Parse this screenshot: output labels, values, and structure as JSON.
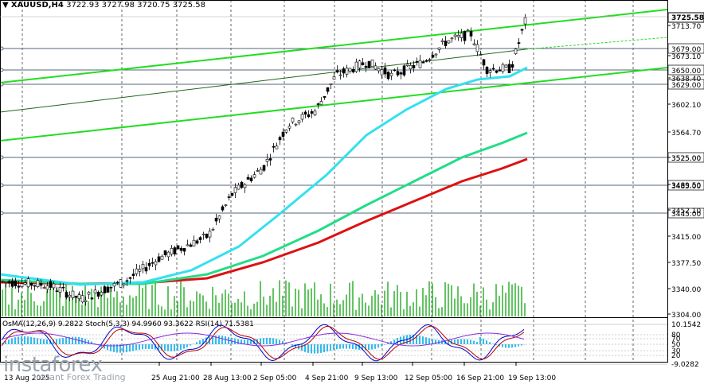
{
  "header": {
    "symbol": "XAUUSD,H4",
    "ohlc": "3722.93 3727.98 3720.75 3725.58"
  },
  "price_axis": {
    "ticks": [
      "3713.70",
      "3673.10",
      "3638.40",
      "3602.10",
      "3564.70",
      "3525.00",
      "3489.50",
      "3452.10",
      "3415.00",
      "3377.50",
      "3340.00",
      "3304.00"
    ],
    "current_price": "3725.58",
    "levels": [
      "3679.00",
      "3650.00",
      "3629.00",
      "3525.00",
      "3485.00",
      "3445.00"
    ]
  },
  "time_axis": {
    "labels": [
      "13 Aug 2025",
      "25 Aug 21:00",
      "28 Aug 13:00",
      "2 Sep 05:00",
      "4 Sep 21:00",
      "9 Sep 13:00",
      "12 Sep 05:00",
      "16 Sep 21:00",
      "19 Sep 13:00"
    ]
  },
  "indicators": {
    "label": "OsMA(12,26,9) 9.2822  Stoch(5,3,3) 94.9960 93.3622  RSI(14) 71.5381",
    "axis": [
      "10.1542",
      "80",
      "70",
      "50",
      "30",
      "20",
      "-9.0282"
    ]
  },
  "branding": {
    "name": "instaforex",
    "tagline": "Instant Forex Trading"
  },
  "colors": {
    "channel": "#22dd22",
    "ema_fast": "#33e0f0",
    "ema_mid": "#22dd88",
    "ema_slow": "#dd1111",
    "candle": "#000000",
    "volume": "#22aa22",
    "level_line": "#556677",
    "osma": "#33bbee",
    "stoch_main": "#0000cc",
    "stoch_signal": "#bb0000",
    "rsi": "#8a2be2"
  }
}
